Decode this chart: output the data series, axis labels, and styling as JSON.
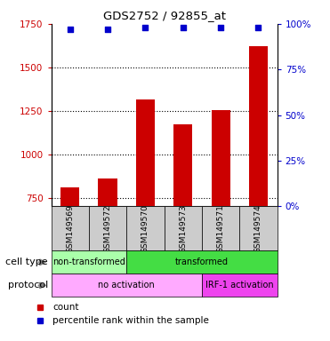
{
  "title": "GDS2752 / 92855_at",
  "samples": [
    "GSM149569",
    "GSM149572",
    "GSM149570",
    "GSM149573",
    "GSM149571",
    "GSM149574"
  ],
  "bar_values": [
    810,
    860,
    1315,
    1170,
    1255,
    1620
  ],
  "percentile_values": [
    97,
    97,
    98,
    98,
    98,
    98
  ],
  "bar_color": "#cc0000",
  "dot_color": "#0000cc",
  "ylim_left": [
    700,
    1750
  ],
  "ylim_right": [
    0,
    100
  ],
  "yticks_left": [
    750,
    1000,
    1250,
    1500,
    1750
  ],
  "yticks_right": [
    0,
    25,
    50,
    75,
    100
  ],
  "cell_type_groups": [
    {
      "label": "non-transformed",
      "start": 0,
      "end": 2,
      "color": "#aaffaa"
    },
    {
      "label": "transformed",
      "start": 2,
      "end": 6,
      "color": "#44dd44"
    }
  ],
  "protocol_groups": [
    {
      "label": "no activation",
      "start": 0,
      "end": 4,
      "color": "#ffaaff"
    },
    {
      "label": "IRF-1 activation",
      "start": 4,
      "end": 6,
      "color": "#ee44ee"
    }
  ],
  "cell_type_label": "cell type",
  "protocol_label": "protocol",
  "legend_count_label": "count",
  "legend_percentile_label": "percentile rank within the sample",
  "tick_color_left": "#cc0000",
  "tick_color_right": "#0000cc",
  "dotted_gridlines": [
    750,
    1000,
    1250,
    1500
  ],
  "sample_box_color": "#cccccc",
  "fig_width": 3.71,
  "fig_height": 3.84,
  "dpi": 100
}
